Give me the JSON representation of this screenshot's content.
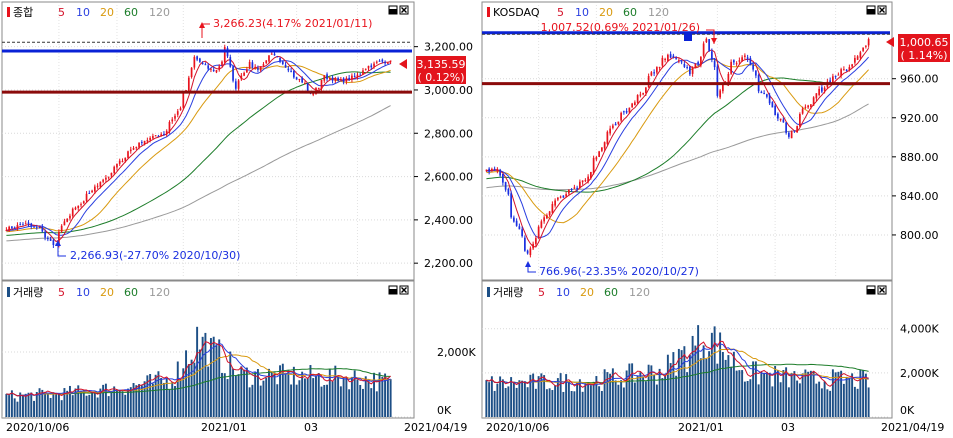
{
  "colors": {
    "up": "#e8131d",
    "down": "#1a2fe0",
    "ma5": "#d4122a",
    "ma10": "#2a3fe0",
    "ma20": "#d99a10",
    "ma60": "#1d7d2a",
    "ma120": "#9a9a9a",
    "volume": "#1d4f86",
    "high_line": "#0a22d6",
    "low_line": "#8b0b0b",
    "price_tag": "#e3141c"
  },
  "legend_items": [
    "5",
    "10",
    "20",
    "60",
    "120"
  ],
  "x_axis": {
    "tick_labels": [
      "2020/10/06",
      "2021/01",
      "03",
      "2021/04/19"
    ]
  },
  "panels": [
    {
      "id": "kospi",
      "title": "종합",
      "volume_title": "거래량",
      "price_ticks": [
        "3,200.00",
        "3,000.00",
        "2,800.00",
        "2,600.00",
        "2,400.00",
        "2,200.00"
      ],
      "volume_ticks": [
        "2,000K",
        "0K"
      ],
      "high_label": "3,266.23(4.17% 2021/01/11)",
      "low_label": "2,266.93(-27.70% 2020/10/30)",
      "current_price": "3,135.59",
      "current_change": "( 0.12%)"
    },
    {
      "id": "kosdaq",
      "title": "KOSDAQ",
      "volume_title": "거래량",
      "price_ticks": [
        "960.00",
        "920.00",
        "880.00",
        "840.00",
        "800.00"
      ],
      "volume_ticks": [
        "4,000K",
        "2,000K",
        "0K"
      ],
      "high_label": "1,007.52(0.69% 2021/01/26)",
      "low_label": "766.96(-23.35% 2020/10/27)",
      "current_price": "1,000.65",
      "current_change": "( 1.14%)"
    }
  ],
  "chart_data": [
    {
      "type": "candlestick",
      "title": "종합",
      "x_start": "2020/10/06",
      "x_end": "2021/04/19",
      "ylim": [
        2150,
        3300
      ],
      "levels": {
        "high_line": 3180,
        "low_line": 2990
      },
      "high": {
        "value": 3266.23,
        "date": "2021/01/11"
      },
      "low": {
        "value": 2266.93,
        "date": "2020/10/30"
      },
      "close_points": [
        {
          "date": "2020/10/06",
          "close": 2360
        },
        {
          "date": "2020/10/15",
          "close": 2380
        },
        {
          "date": "2020/10/22",
          "close": 2360
        },
        {
          "date": "2020/10/30",
          "close": 2280
        },
        {
          "date": "2020/11/05",
          "close": 2410
        },
        {
          "date": "2020/11/13",
          "close": 2480
        },
        {
          "date": "2020/11/20",
          "close": 2560
        },
        {
          "date": "2020/11/27",
          "close": 2610
        },
        {
          "date": "2020/12/04",
          "close": 2690
        },
        {
          "date": "2020/12/11",
          "close": 2750
        },
        {
          "date": "2020/12/18",
          "close": 2780
        },
        {
          "date": "2020/12/24",
          "close": 2800
        },
        {
          "date": "2020/12/30",
          "close": 2880
        },
        {
          "date": "2021/01/05",
          "close": 3000
        },
        {
          "date": "2021/01/08",
          "close": 3150
        },
        {
          "date": "2021/01/11",
          "close": 3140
        },
        {
          "date": "2021/01/15",
          "close": 3100
        },
        {
          "date": "2021/01/20",
          "close": 3090
        },
        {
          "date": "2021/01/25",
          "close": 3200
        },
        {
          "date": "2021/01/29",
          "close": 3000
        },
        {
          "date": "2021/02/05",
          "close": 3120
        },
        {
          "date": "2021/02/10",
          "close": 3100
        },
        {
          "date": "2021/02/17",
          "close": 3160
        },
        {
          "date": "2021/02/25",
          "close": 3100
        },
        {
          "date": "2021/03/04",
          "close": 3040
        },
        {
          "date": "2021/03/09",
          "close": 2980
        },
        {
          "date": "2021/03/16",
          "close": 3060
        },
        {
          "date": "2021/03/23",
          "close": 3040
        },
        {
          "date": "2021/03/31",
          "close": 3060
        },
        {
          "date": "2021/04/07",
          "close": 3110
        },
        {
          "date": "2021/04/13",
          "close": 3130
        },
        {
          "date": "2021/04/19",
          "close": 3135.59
        }
      ],
      "volume_ylim": [
        0,
        3600
      ],
      "volume_unit": "K",
      "volume_points": [
        {
          "date": "2020/10/06",
          "volume": 640
        },
        {
          "date": "2020/11/02",
          "volume": 720
        },
        {
          "date": "2020/11/30",
          "volume": 880
        },
        {
          "date": "2020/12/28",
          "volume": 1150
        },
        {
          "date": "2021/01/11",
          "volume": 2400
        },
        {
          "date": "2021/02/01",
          "volume": 1300
        },
        {
          "date": "2021/03/02",
          "volume": 1250
        },
        {
          "date": "2021/04/01",
          "volume": 1200
        },
        {
          "date": "2021/04/19",
          "volume": 1050
        }
      ]
    },
    {
      "type": "candlestick",
      "title": "KOSDAQ",
      "x_start": "2020/10/06",
      "x_end": "2021/04/19",
      "ylim": [
        760,
        1015
      ],
      "levels": {
        "high_line": 1007,
        "low_line": 955
      },
      "high": {
        "value": 1007.52,
        "date": "2021/01/26"
      },
      "low": {
        "value": 766.96,
        "date": "2020/10/27"
      },
      "close_points": [
        {
          "date": "2020/10/06",
          "close": 865
        },
        {
          "date": "2020/10/12",
          "close": 870
        },
        {
          "date": "2020/10/19",
          "close": 820
        },
        {
          "date": "2020/10/27",
          "close": 780
        },
        {
          "date": "2020/11/03",
          "close": 815
        },
        {
          "date": "2020/11/10",
          "close": 835
        },
        {
          "date": "2020/11/18",
          "close": 845
        },
        {
          "date": "2020/11/25",
          "close": 855
        },
        {
          "date": "2020/12/03",
          "close": 890
        },
        {
          "date": "2020/12/10",
          "close": 915
        },
        {
          "date": "2020/12/17",
          "close": 930
        },
        {
          "date": "2020/12/24",
          "close": 945
        },
        {
          "date": "2020/12/30",
          "close": 968
        },
        {
          "date": "2021/01/06",
          "close": 985
        },
        {
          "date": "2021/01/12",
          "close": 980
        },
        {
          "date": "2021/01/18",
          "close": 965
        },
        {
          "date": "2021/01/26",
          "close": 1000
        },
        {
          "date": "2021/02/01",
          "close": 945
        },
        {
          "date": "2021/02/08",
          "close": 975
        },
        {
          "date": "2021/02/15",
          "close": 985
        },
        {
          "date": "2021/02/22",
          "close": 950
        },
        {
          "date": "2021/03/02",
          "close": 925
        },
        {
          "date": "2021/03/09",
          "close": 900
        },
        {
          "date": "2021/03/16",
          "close": 930
        },
        {
          "date": "2021/03/23",
          "close": 945
        },
        {
          "date": "2021/03/31",
          "close": 960
        },
        {
          "date": "2021/04/07",
          "close": 970
        },
        {
          "date": "2021/04/13",
          "close": 985
        },
        {
          "date": "2021/04/19",
          "close": 1000.65
        }
      ],
      "volume_ylim": [
        0,
        5300
      ],
      "volume_unit": "K",
      "volume_points": [
        {
          "date": "2020/10/06",
          "volume": 1500
        },
        {
          "date": "2020/11/02",
          "volume": 1550
        },
        {
          "date": "2020/12/01",
          "volume": 1650
        },
        {
          "date": "2021/01/04",
          "volume": 2100
        },
        {
          "date": "2021/01/26",
          "volume": 3700
        },
        {
          "date": "2021/02/15",
          "volume": 2000
        },
        {
          "date": "2021/03/15",
          "volume": 1700
        },
        {
          "date": "2021/04/19",
          "volume": 1650
        }
      ]
    }
  ]
}
